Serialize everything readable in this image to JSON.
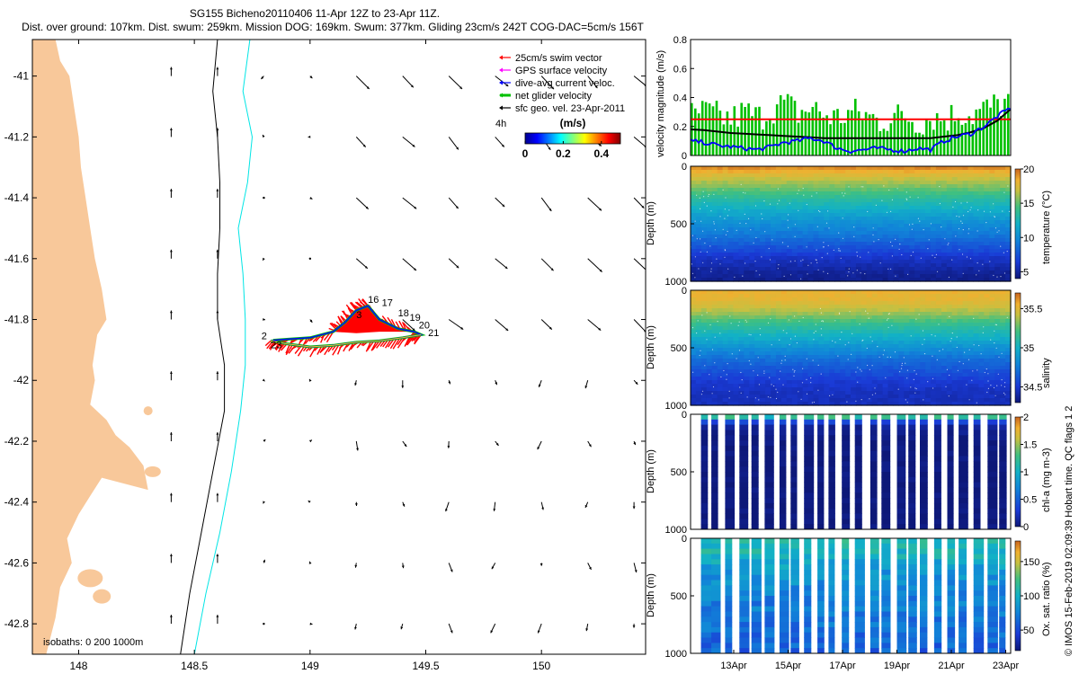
{
  "title": {
    "line1": "SG155 Bicheno20110406 11-Apr 12Z to 23-Apr 11Z.",
    "line2": "Dist. over ground: 107km. Dist. swum: 259km. Mission DOG: 169km. Swum: 377km. Gliding 23cm/s 242T COG-DAC=5cm/s 156T"
  },
  "colors": {
    "land": "#f8c89a",
    "coastline": "#000000",
    "isobath_200": "#000000",
    "isobath_1000": "#00e5e5",
    "swim": "#ff0000",
    "gps": "#ff00ff",
    "dac": "#0000ff",
    "net": "#00c000",
    "geo": "#000000",
    "threshold": "#ff0000",
    "smooth": "#000000"
  },
  "map": {
    "xlim": [
      147.8,
      150.45
    ],
    "ylim": [
      -42.9,
      -40.88
    ],
    "xticks": [
      148,
      148.5,
      149,
      149.5,
      150
    ],
    "xtick_labels": [
      "148",
      "148.5",
      "149",
      "149.5",
      "150"
    ],
    "yticks": [
      -41,
      -41.2,
      -41.4,
      -41.6,
      -41.8,
      -42,
      -42.2,
      -42.4,
      -42.6,
      -42.8
    ],
    "ytick_labels": [
      "-41",
      "-41.2",
      "-41.4",
      "-41.6",
      "-41.8",
      "-42",
      "-42.2",
      "-42.4",
      "-42.6",
      "-42.8"
    ],
    "isobath_note": "isobaths: 0   200   1000m",
    "legend": {
      "swim": "25cm/s swim vector",
      "gps": "GPS surface velocity",
      "dac": "dive-avg current veloc.",
      "net": "net glider velocity",
      "geo": "sfc geo. vel. 23-Apr-2011",
      "time_scale": "4h"
    },
    "colorbar": {
      "title": "(m/s)",
      "range": [
        0,
        0.5
      ],
      "tick_labels": [
        "0",
        "0.2",
        "0.4"
      ],
      "ticks": [
        0,
        0.2,
        0.4
      ]
    },
    "day_labels": [
      {
        "label": "2",
        "lon": 148.79,
        "lat": -41.865
      },
      {
        "label": "3",
        "lon": 149.2,
        "lat": -41.795
      },
      {
        "label": "16",
        "lon": 149.25,
        "lat": -41.745
      },
      {
        "label": "17",
        "lon": 149.31,
        "lat": -41.755
      },
      {
        "label": "18",
        "lon": 149.38,
        "lat": -41.79
      },
      {
        "label": "19",
        "lon": 149.43,
        "lat": -41.805
      },
      {
        "label": "20",
        "lon": 149.47,
        "lat": -41.83
      },
      {
        "label": "21",
        "lon": 149.51,
        "lat": -41.855
      },
      {
        "label": "23",
        "lon": 148.83,
        "lat": -41.895
      }
    ]
  },
  "chart_data": [
    {
      "type": "line",
      "panel": "velocity",
      "ylabel": "velocity magnitude (m/s)",
      "ylim": [
        0,
        0.8
      ],
      "yticks": [
        0,
        0.2,
        0.4,
        0.6,
        0.8
      ],
      "ytick_labels": [
        "0",
        "0.2",
        "0.4",
        "0.6",
        "0.8"
      ],
      "threshold": 0.25,
      "x": [
        0,
        0.5,
        1,
        1.5,
        2,
        2.5,
        3,
        3.5,
        4,
        4.5,
        5,
        5.5,
        6,
        6.5,
        7,
        7.5,
        8,
        8.5,
        9,
        9.5,
        10,
        10.5,
        11,
        11.5,
        12
      ],
      "series": [
        {
          "name": "smooth",
          "values": [
            0.18,
            0.175,
            0.165,
            0.155,
            0.15,
            0.145,
            0.14,
            0.135,
            0.13,
            0.125,
            0.12,
            0.12,
            0.12,
            0.12,
            0.12,
            0.12,
            0.12,
            0.12,
            0.12,
            0.13,
            0.14,
            0.16,
            0.19,
            0.24,
            0.32
          ]
        },
        {
          "name": "dive-avg",
          "values": [
            0.1,
            0.09,
            0.07,
            0.06,
            0.05,
            0.04,
            0.06,
            0.09,
            0.1,
            0.12,
            0.1,
            0.05,
            0.03,
            0.04,
            0.05,
            0.04,
            0.03,
            0.05,
            0.04,
            0.1,
            0.13,
            0.15,
            0.2,
            0.27,
            0.33
          ]
        },
        {
          "name": "net",
          "values": [
            0.28,
            0.3,
            0.27,
            0.25,
            0.3,
            0.26,
            0.32,
            0.36,
            0.29,
            0.33,
            0.28,
            0.26,
            0.3,
            0.28,
            0.24,
            0.26,
            0.28,
            0.23,
            0.27,
            0.25,
            0.3,
            0.28,
            0.32,
            0.35,
            0.38
          ]
        }
      ]
    },
    {
      "type": "heatmap",
      "panel": "temperature",
      "ylabel": "Depth (m)",
      "cbar_label": "temperature (°C)",
      "ylim": [
        1000,
        0
      ],
      "yticks": [
        0,
        500,
        1000
      ],
      "ytick_labels": [
        "0",
        "500",
        "1000"
      ],
      "clim": [
        4,
        20
      ],
      "cbar_ticks": [
        5,
        10,
        15,
        20
      ],
      "cbar_tick_labels": [
        "5",
        "10",
        "15",
        "20"
      ],
      "profile_depth": [
        0,
        100,
        200,
        300,
        400,
        500,
        600,
        700,
        800,
        900,
        1000
      ],
      "profile_values": [
        19.5,
        17,
        15,
        13,
        11.5,
        10,
        9,
        7.5,
        6,
        5,
        4.5
      ]
    },
    {
      "type": "heatmap",
      "panel": "salinity",
      "ylabel": "Depth (m)",
      "cbar_label": "salinity",
      "ylim": [
        1000,
        0
      ],
      "yticks": [
        0,
        500,
        1000
      ],
      "ytick_labels": [
        "0",
        "500",
        "1000"
      ],
      "clim": [
        34.3,
        35.7
      ],
      "cbar_ticks": [
        34.5,
        35,
        35.5
      ],
      "cbar_tick_labels": [
        "34.5",
        "35",
        "35.5"
      ],
      "profile_depth": [
        0,
        100,
        200,
        300,
        400,
        500,
        600,
        700,
        800,
        900,
        1000
      ],
      "profile_values": [
        35.55,
        35.5,
        35.35,
        35.15,
        35.0,
        34.85,
        34.7,
        34.6,
        34.5,
        34.45,
        34.45
      ]
    },
    {
      "type": "heatmap",
      "panel": "chla",
      "ylabel": "Depth (m)",
      "cbar_label": "chl-a (mg m-3)",
      "ylim": [
        1000,
        0
      ],
      "yticks": [
        0,
        500,
        1000
      ],
      "ytick_labels": [
        "0",
        "500",
        "1000"
      ],
      "clim": [
        0,
        2
      ],
      "cbar_ticks": [
        0,
        0.5,
        1,
        1.5,
        2
      ],
      "cbar_tick_labels": [
        "0",
        "0.5",
        "1",
        "1.5",
        "2"
      ],
      "profile_depth": [
        0,
        50,
        100,
        200,
        400,
        1000
      ],
      "profile_values": [
        0.9,
        0.5,
        0.1,
        0.02,
        0.01,
        0.01
      ]
    },
    {
      "type": "heatmap",
      "panel": "oxygen",
      "ylabel": "Depth (m)",
      "cbar_label": "Ox. sat. ratio (%)",
      "ylim": [
        1000,
        0
      ],
      "yticks": [
        0,
        500,
        1000
      ],
      "ytick_labels": [
        "0",
        "500",
        "1000"
      ],
      "clim": [
        20,
        180
      ],
      "cbar_ticks": [
        50,
        100,
        150
      ],
      "cbar_tick_labels": [
        "50",
        "100",
        "150"
      ],
      "xtick_labels": [
        "13Apr",
        "15Apr",
        "17Apr",
        "19Apr",
        "21Apr",
        "23Apr"
      ],
      "profile_depth": [
        0,
        100,
        200,
        300,
        500,
        700,
        1000
      ],
      "profile_values": [
        110,
        105,
        95,
        85,
        75,
        70,
        60
      ]
    }
  ],
  "footer": "© IMOS 15-Feb-2019 02:09:39 Hobart time. QC flags 1  2"
}
